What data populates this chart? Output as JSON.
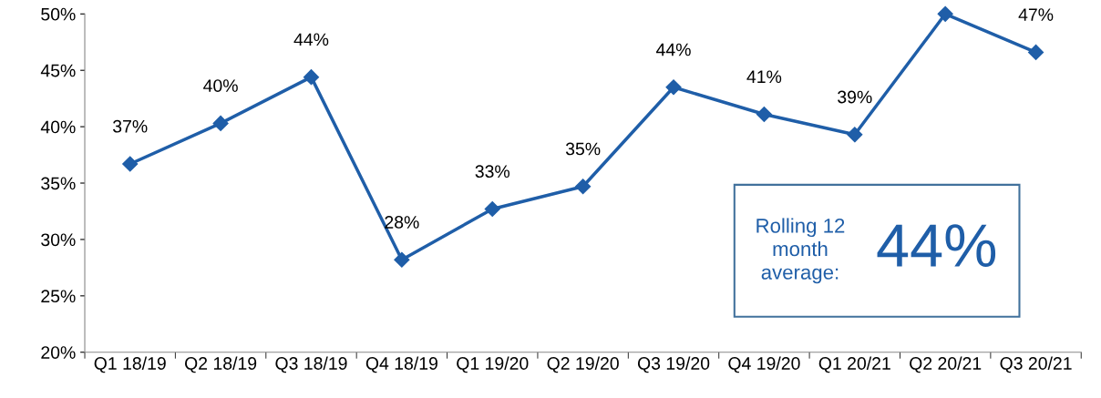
{
  "chart_data": {
    "type": "line",
    "categories": [
      "Q1 18/19",
      "Q2 18/19",
      "Q3 18/19",
      "Q4 18/19",
      "Q1 19/20",
      "Q2 19/20",
      "Q3 19/20",
      "Q4 19/20",
      "Q1 20/21",
      "Q2 20/21",
      "Q3 20/21"
    ],
    "series": [
      {
        "color": "#1f5ea8",
        "values": [
          36.7,
          40.3,
          44.4,
          28.2,
          32.7,
          34.7,
          43.5,
          41.1,
          39.3,
          50.0,
          46.6
        ],
        "value_labels": [
          "37%",
          "40%",
          "44%",
          "28%",
          "33%",
          "35%",
          "44%",
          "41%",
          "39%",
          null,
          "47%"
        ]
      }
    ],
    "ylim": [
      20,
      50
    ],
    "yticks": [
      {
        "value": 20,
        "label": "20%"
      },
      {
        "value": 25,
        "label": "25%"
      },
      {
        "value": 30,
        "label": "30%"
      },
      {
        "value": 35,
        "label": "35%"
      },
      {
        "value": 40,
        "label": "40%"
      },
      {
        "value": 45,
        "label": "45%"
      },
      {
        "value": 50,
        "label": "50%"
      }
    ],
    "marker": "diamond",
    "line_style": "solid",
    "grid": false,
    "legend": false,
    "annotations": [
      "Rolling 12\nmonth\naverage:",
      "44%"
    ]
  }
}
